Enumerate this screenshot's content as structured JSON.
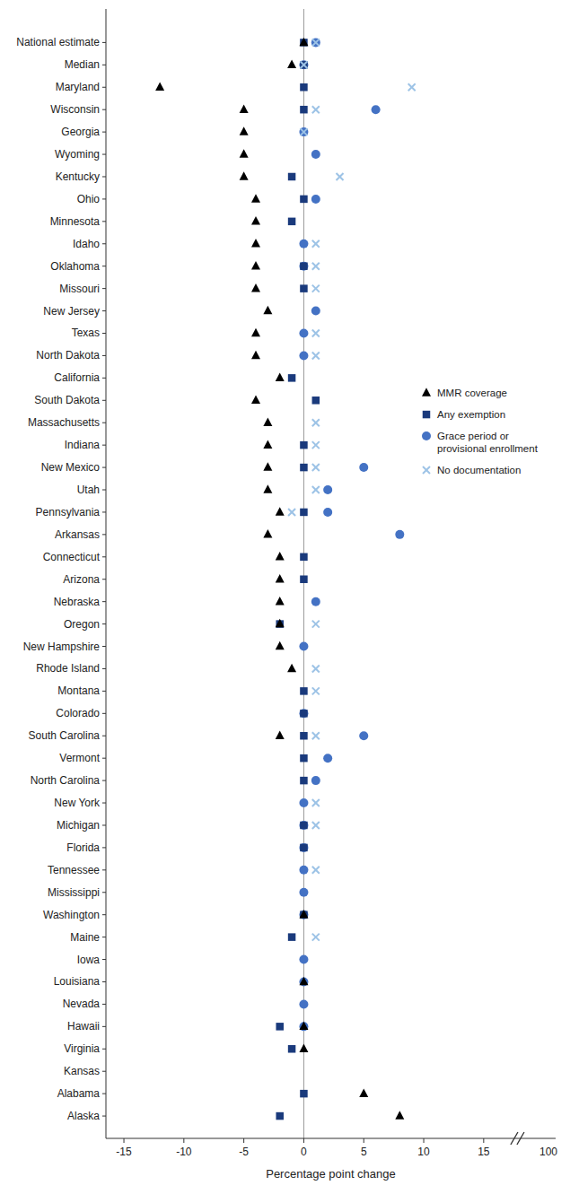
{
  "chart_data": {
    "type": "dot",
    "orientation": "horizontal",
    "categories": [
      "National estimate",
      "Median",
      "Maryland",
      "Wisconsin",
      "Georgia",
      "Wyoming",
      "Kentucky",
      "Ohio",
      "Minnesota",
      "Idaho",
      "Oklahoma",
      "Missouri",
      "New Jersey",
      "Texas",
      "North Dakota",
      "California",
      "South Dakota",
      "Massachusetts",
      "Indiana",
      "New Mexico",
      "Utah",
      "Pennsylvania",
      "Arkansas",
      "Connecticut",
      "Arizona",
      "Nebraska",
      "Oregon",
      "New Hampshire",
      "Rhode Island",
      "Montana",
      "Colorado",
      "South Carolina",
      "Vermont",
      "North Carolina",
      "New York",
      "Michigan",
      "Florida",
      "Tennessee",
      "Mississippi",
      "Washington",
      "Maine",
      "Iowa",
      "Louisiana",
      "Nevada",
      "Hawaii",
      "Virginia",
      "Kansas",
      "Alabama",
      "Alaska"
    ],
    "series": [
      {
        "name": "MMR coverage",
        "color": "#000000",
        "marker": "triangle",
        "values": [
          0,
          -1,
          -12,
          -5,
          -5,
          -5,
          -5,
          -4,
          -4,
          -4,
          -4,
          -4,
          -3,
          -4,
          -4,
          -2,
          -4,
          -3,
          -3,
          -3,
          -3,
          -2,
          -3,
          -2,
          -2,
          -2,
          -2,
          -2,
          -1,
          null,
          null,
          -2,
          null,
          null,
          null,
          null,
          null,
          null,
          null,
          0,
          null,
          null,
          0,
          null,
          0,
          0,
          null,
          5,
          8
        ]
      },
      {
        "name": "Any exemption",
        "color": "#1a3a7c",
        "marker": "square",
        "values": [
          0,
          0,
          0,
          0,
          null,
          null,
          -1,
          0,
          -1,
          null,
          0,
          0,
          null,
          null,
          null,
          -1,
          1,
          null,
          0,
          0,
          null,
          0,
          null,
          0,
          0,
          null,
          -2,
          null,
          null,
          0,
          0,
          0,
          0,
          0,
          null,
          0,
          0,
          null,
          null,
          0,
          -1,
          null,
          null,
          null,
          -2,
          -1,
          null,
          0,
          -2
        ]
      },
      {
        "name": "Grace period or\nprovisional enrollment",
        "color": "#4472c4",
        "marker": "circle",
        "values": [
          1,
          0,
          null,
          6,
          0,
          1,
          null,
          1,
          null,
          0,
          0,
          null,
          1,
          0,
          0,
          null,
          null,
          null,
          null,
          5,
          2,
          2,
          8,
          null,
          null,
          1,
          null,
          0,
          null,
          null,
          0,
          5,
          2,
          1,
          0,
          0,
          0,
          0,
          0,
          0,
          null,
          0,
          0,
          0,
          0,
          null,
          null,
          null,
          null
        ]
      },
      {
        "name": "No documentation",
        "color": "#9dc3e6",
        "marker": "x",
        "values": [
          1,
          0,
          9,
          1,
          0,
          null,
          3,
          null,
          null,
          1,
          1,
          1,
          null,
          1,
          1,
          null,
          null,
          1,
          1,
          1,
          1,
          -1,
          null,
          null,
          null,
          null,
          1,
          null,
          1,
          1,
          null,
          1,
          null,
          null,
          1,
          1,
          null,
          1,
          null,
          null,
          1,
          null,
          null,
          null,
          null,
          null,
          null,
          null,
          null
        ]
      }
    ],
    "xlabel": "Percentage point change",
    "xlim": [
      -16.5,
      21
    ],
    "xticks": [
      -15,
      -10,
      -5,
      0,
      5,
      10,
      15
    ],
    "annotations": [
      {
        "text": "100"
      }
    ],
    "grid": false,
    "legend": "right"
  }
}
